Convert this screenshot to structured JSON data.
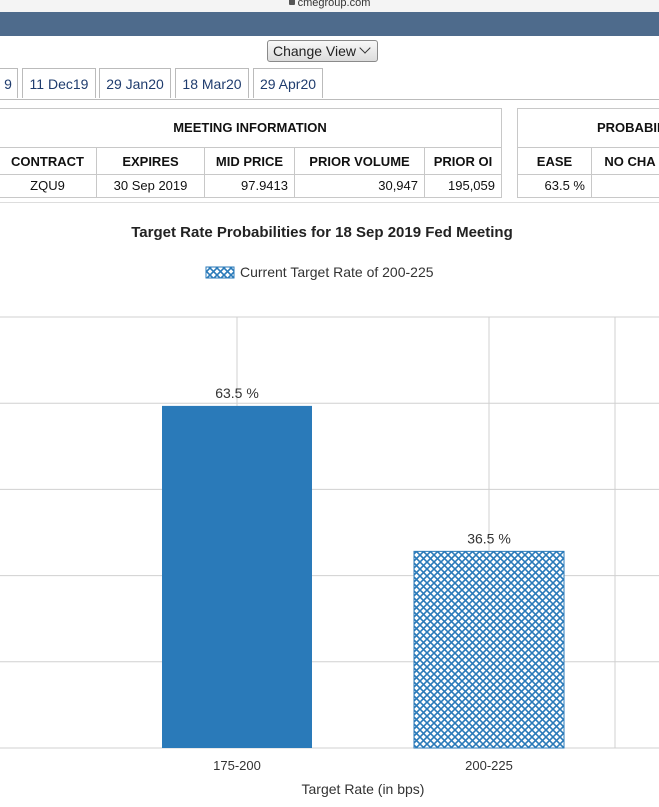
{
  "browser": {
    "url": "cmegroup.com"
  },
  "toolbar": {
    "change_view_label": "Change View"
  },
  "tabs": [
    "9",
    "11 Dec19",
    "29 Jan20",
    "18 Mar20",
    "29 Apr20"
  ],
  "meeting_info": {
    "header": "MEETING INFORMATION",
    "columns": [
      "CONTRACT",
      "EXPIRES",
      "MID PRICE",
      "PRIOR VOLUME",
      "PRIOR OI"
    ],
    "row": [
      "ZQU9",
      "30 Sep 2019",
      "97.9413",
      "30,947",
      "195,059"
    ]
  },
  "probabilities": {
    "header": "PROBABIL",
    "columns": [
      "EASE",
      "NO CHA"
    ],
    "row": [
      "63.5 %",
      ""
    ]
  },
  "colors": {
    "bar": "#2a7ab9",
    "grid": "#d0d0d0",
    "tab_text": "#1f3c6e",
    "top_bar": "#4e6b8c"
  },
  "chart_data": {
    "type": "bar",
    "title": "Target Rate Probabilities for 18 Sep 2019 Fed Meeting",
    "legend": {
      "label": "Current Target Rate of 200-225",
      "placement": "top-center"
    },
    "categories": [
      "175-200",
      "200-225"
    ],
    "values": [
      63.5,
      36.5
    ],
    "data_labels": [
      "63.5 %",
      "36.5 %"
    ],
    "xlabel": "Target Rate (in bps)",
    "ylabel": "",
    "ylim": [
      0,
      80
    ],
    "grid": true,
    "highlight_category": "200-225"
  }
}
